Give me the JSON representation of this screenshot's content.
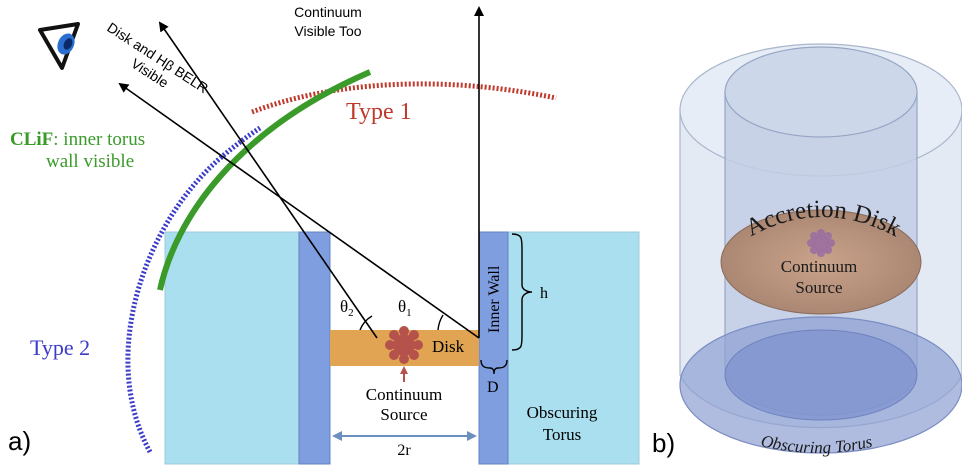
{
  "panel_a": {
    "label": "a)",
    "continuum_visible_line1": "Continuum",
    "continuum_visible_line2": "Visible Too",
    "disk_blr_line1": "Disk and Hβ BELR",
    "disk_blr_line2": "Visible",
    "type1": "Type 1",
    "clif_bold": "CLiF",
    "clif_rest": ": inner torus",
    "clif_line2": "wall visible",
    "type2": "Type 2",
    "theta2": "θ",
    "theta2_sub": "2",
    "theta1": "θ",
    "theta1_sub": "1",
    "disk": "Disk",
    "inner_wall": "Inner Wall",
    "h": "h",
    "D": "D",
    "continuum_source_line1": "Continuum",
    "continuum_source_line2": "Source",
    "r2": "2r",
    "obscuring_line1": "Obscuring",
    "obscuring_line2": "Torus"
  },
  "panel_b": {
    "label": "b)",
    "accretion_disk": "Accretion Disk",
    "continuum_line1": "Continuum",
    "continuum_line2": "Source",
    "obscuring_torus": "Obscuring Torus"
  },
  "colors": {
    "type1_red": "#c0392b",
    "type2_blue": "#3b3bc8",
    "clif_green": "#3a9a2a",
    "torus_fill": "#a9dfee",
    "wall_fill": "#7f9ee0",
    "disk_fill": "#e0a452",
    "source_red": "#b5524b"
  }
}
